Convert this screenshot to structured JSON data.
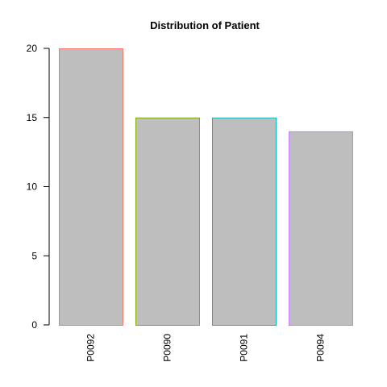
{
  "chart_data": {
    "type": "bar",
    "title": "Distribution of Patient",
    "xlabel": "",
    "ylabel": "",
    "categories": [
      "P0092",
      "P0090",
      "P0091",
      "P0094"
    ],
    "values": [
      20,
      15,
      15,
      14
    ],
    "ylim": [
      0,
      20
    ],
    "yticks": [
      0,
      5,
      10,
      15,
      20
    ],
    "grid": false,
    "legend": "none",
    "bar_fill": "#bebebe",
    "bar_borders": [
      "#f8766d",
      "#7cae00",
      "#00bfc4",
      "#c77cff"
    ],
    "x_tick_rotation": "vertical"
  }
}
